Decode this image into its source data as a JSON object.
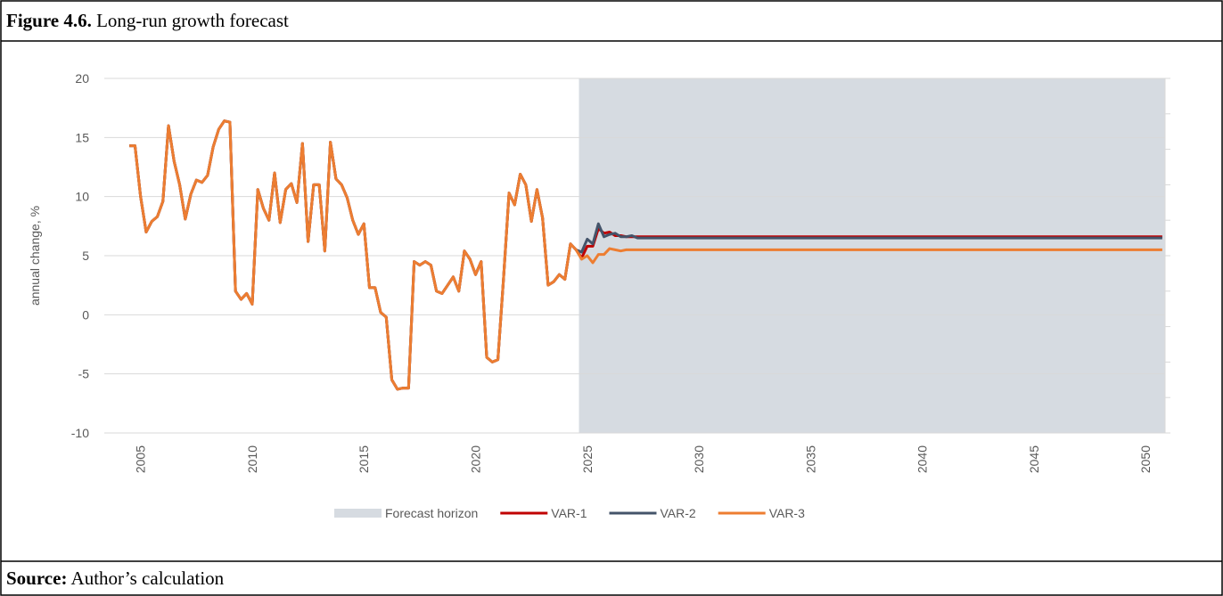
{
  "figure": {
    "label": "Figure 4.6.",
    "title": "Long-run growth forecast"
  },
  "source": {
    "label": "Source:",
    "text": "Author’s calculation"
  },
  "chart_data": {
    "type": "line",
    "y_label": "annual change, %",
    "ylim": [
      -10,
      20
    ],
    "yticks": [
      -10,
      -5,
      0,
      5,
      10,
      15,
      20
    ],
    "y2lim": [
      0,
      1
    ],
    "y2ticks": [
      0,
      0.1,
      0.2,
      0.3,
      0.4,
      0.5,
      0.6,
      0.7,
      0.8,
      0.9,
      1
    ],
    "grid": true,
    "legend": "bottom",
    "categories": [
      null,
      null,
      null,
      null,
      null,
      null,
      "2005",
      null,
      null,
      null,
      null,
      null,
      null,
      null,
      null,
      null,
      null,
      null,
      null,
      null,
      null,
      null,
      null,
      null,
      null,
      null,
      "2010",
      null,
      null,
      null,
      null,
      null,
      null,
      null,
      null,
      null,
      null,
      null,
      null,
      null,
      null,
      null,
      null,
      null,
      null,
      null,
      "2015",
      null,
      null,
      null,
      null,
      null,
      null,
      null,
      null,
      null,
      null,
      null,
      null,
      null,
      null,
      null,
      null,
      null,
      null,
      null,
      "2020",
      null,
      null,
      null,
      null,
      null,
      null,
      null,
      null,
      null,
      null,
      null,
      null,
      null,
      null,
      null,
      null,
      null,
      null,
      null,
      "2025",
      null,
      null,
      null,
      null,
      null,
      null,
      null,
      null,
      null,
      null,
      null,
      null,
      null,
      null,
      null,
      null,
      null,
      null,
      null,
      "2030",
      null,
      null,
      null,
      null,
      null,
      null,
      null,
      null,
      null,
      null,
      null,
      null,
      null,
      null,
      null,
      null,
      null,
      null,
      null,
      "2035",
      null,
      null,
      null,
      null,
      null,
      null,
      null,
      null,
      null,
      null,
      null,
      null,
      null,
      null,
      null,
      null,
      null,
      null,
      null,
      "2040",
      null,
      null,
      null,
      null,
      null,
      null,
      null,
      null,
      null,
      null,
      null,
      null,
      null,
      null,
      null,
      null,
      null,
      null,
      null,
      "2045",
      null,
      null,
      null,
      null,
      null,
      null,
      null,
      null,
      null,
      null,
      null,
      null,
      null,
      null,
      null,
      null,
      null,
      null,
      null,
      "2050",
      null,
      null,
      null
    ],
    "series": [
      {
        "name": "Forecast horizon",
        "type": "bar",
        "axis": "y2",
        "color": "#d6dbe1",
        "values": [
          null,
          null,
          null,
          null,
          null,
          null,
          null,
          null,
          null,
          null,
          null,
          null,
          null,
          null,
          null,
          null,
          null,
          null,
          null,
          null,
          null,
          null,
          null,
          null,
          null,
          null,
          null,
          null,
          null,
          null,
          null,
          null,
          null,
          null,
          null,
          null,
          null,
          null,
          null,
          null,
          null,
          null,
          null,
          null,
          null,
          null,
          null,
          null,
          null,
          null,
          null,
          null,
          null,
          null,
          null,
          null,
          null,
          null,
          null,
          null,
          null,
          null,
          null,
          null,
          null,
          null,
          null,
          null,
          null,
          null,
          null,
          null,
          null,
          null,
          null,
          null,
          null,
          null,
          null,
          null,
          null,
          null,
          null,
          null,
          null,
          1,
          1,
          1,
          1,
          1,
          1,
          1,
          1,
          1,
          1,
          1,
          1,
          1,
          1,
          1,
          1,
          1,
          1,
          1,
          1,
          1,
          1,
          1,
          1,
          1,
          1,
          1,
          1,
          1,
          1,
          1,
          1,
          1,
          1,
          1,
          1,
          1,
          1,
          1,
          1,
          1,
          1,
          1,
          1,
          1,
          1,
          1,
          1,
          1,
          1,
          1,
          1,
          1,
          1,
          1,
          1,
          1,
          1,
          1,
          1,
          1,
          1,
          1,
          1,
          1,
          1,
          1,
          1,
          1,
          1,
          1,
          1,
          1,
          1,
          1,
          1,
          1,
          1,
          1,
          1,
          1,
          1,
          1,
          1,
          1,
          1,
          1,
          1,
          1,
          1,
          1,
          1,
          1,
          1,
          1,
          1,
          1,
          1,
          1,
          1,
          1,
          1,
          1,
          1,
          1
        ]
      },
      {
        "name": "VAR-1",
        "type": "line",
        "color": "#c00000",
        "values": [
          null,
          null,
          null,
          null,
          14.3,
          14.3,
          10,
          7,
          7.9,
          8.3,
          9.6,
          16,
          13,
          11,
          8.1,
          10.2,
          11.4,
          11.2,
          11.8,
          14.2,
          15.7,
          16.4,
          16.3,
          2,
          1.3,
          1.8,
          0.9,
          10.6,
          9,
          8,
          12,
          7.8,
          10.6,
          11.1,
          9.5,
          14.5,
          6.2,
          11,
          11,
          5.4,
          14.6,
          11.5,
          11,
          9.9,
          8,
          6.8,
          7.7,
          2.3,
          2.3,
          0.2,
          -0.2,
          -5.5,
          -6.3,
          -6.2,
          -6.2,
          4.5,
          4.2,
          4.5,
          4.2,
          2,
          1.8,
          2.5,
          3.2,
          2,
          5.4,
          4.7,
          3.4,
          4.5,
          -3.6,
          -4,
          -3.8,
          3,
          10.3,
          9.3,
          11.9,
          11,
          7.9,
          10.6,
          8.2,
          2.5,
          2.8,
          3.4,
          3,
          6,
          5.5,
          4.8,
          5.8,
          5.8,
          7.3,
          6.9,
          7,
          6.7,
          6.7,
          6.6,
          6.6,
          6.6,
          6.6,
          6.6,
          6.6,
          6.6,
          6.6,
          6.6,
          6.6,
          6.6,
          6.6,
          6.6,
          6.6,
          6.6,
          6.6,
          6.6,
          6.6,
          6.6,
          6.6,
          6.6,
          6.6,
          6.6,
          6.6,
          6.6,
          6.6,
          6.6,
          6.6,
          6.6,
          6.6,
          6.6,
          6.6,
          6.6,
          6.6,
          6.6,
          6.6,
          6.6,
          6.6,
          6.6,
          6.6,
          6.6,
          6.6,
          6.6,
          6.6,
          6.6,
          6.6,
          6.6,
          6.6,
          6.6,
          6.6,
          6.6,
          6.6,
          6.6,
          6.6,
          6.6,
          6.6,
          6.6,
          6.6,
          6.6,
          6.6,
          6.6,
          6.6,
          6.6,
          6.6,
          6.6,
          6.6,
          6.6,
          6.6,
          6.6,
          6.6,
          6.6,
          6.6,
          6.6,
          6.6,
          6.6,
          6.6,
          6.6,
          6.6,
          6.6,
          6.6,
          6.6,
          6.6,
          6.6,
          6.6,
          6.6,
          6.6,
          6.6,
          6.6,
          6.6,
          6.6,
          6.6,
          6.6,
          6.6,
          6.6,
          6.6,
          6.6,
          6.6
        ]
      },
      {
        "name": "VAR-2",
        "type": "line",
        "color": "#44546a",
        "values": [
          null,
          null,
          null,
          null,
          14.3,
          14.3,
          10,
          7,
          7.9,
          8.3,
          9.6,
          16,
          13,
          11,
          8.1,
          10.2,
          11.4,
          11.2,
          11.8,
          14.2,
          15.7,
          16.4,
          16.3,
          2,
          1.3,
          1.8,
          0.9,
          10.6,
          9,
          8,
          12,
          7.8,
          10.6,
          11.1,
          9.5,
          14.5,
          6.2,
          11,
          11,
          5.4,
          14.6,
          11.5,
          11,
          9.9,
          8,
          6.8,
          7.7,
          2.3,
          2.3,
          0.2,
          -0.2,
          -5.5,
          -6.3,
          -6.2,
          -6.2,
          4.5,
          4.2,
          4.5,
          4.2,
          2,
          1.8,
          2.5,
          3.2,
          2,
          5.4,
          4.7,
          3.4,
          4.5,
          -3.6,
          -4,
          -3.8,
          3,
          10.3,
          9.3,
          11.9,
          11,
          7.9,
          10.6,
          8.2,
          2.5,
          2.8,
          3.4,
          3,
          6,
          5.5,
          5.3,
          6.4,
          6,
          7.7,
          6.6,
          6.8,
          6.9,
          6.6,
          6.6,
          6.7,
          6.5,
          6.5,
          6.5,
          6.5,
          6.5,
          6.5,
          6.5,
          6.5,
          6.5,
          6.5,
          6.5,
          6.5,
          6.5,
          6.5,
          6.5,
          6.5,
          6.5,
          6.5,
          6.5,
          6.5,
          6.5,
          6.5,
          6.5,
          6.5,
          6.5,
          6.5,
          6.5,
          6.5,
          6.5,
          6.5,
          6.5,
          6.5,
          6.5,
          6.5,
          6.5,
          6.5,
          6.5,
          6.5,
          6.5,
          6.5,
          6.5,
          6.5,
          6.5,
          6.5,
          6.5,
          6.5,
          6.5,
          6.5,
          6.5,
          6.5,
          6.5,
          6.5,
          6.5,
          6.5,
          6.5,
          6.5,
          6.5,
          6.5,
          6.5,
          6.5,
          6.5,
          6.5,
          6.5,
          6.5,
          6.5,
          6.5,
          6.5,
          6.5,
          6.5,
          6.5,
          6.5,
          6.5,
          6.5,
          6.5,
          6.5,
          6.5,
          6.5,
          6.5,
          6.5,
          6.5,
          6.5,
          6.5,
          6.5,
          6.5,
          6.5,
          6.5,
          6.5,
          6.5,
          6.5,
          6.5,
          6.5,
          6.5,
          6.5,
          6.5,
          6.5
        ]
      },
      {
        "name": "VAR-3",
        "type": "line",
        "color": "#ed7d31",
        "values": [
          null,
          null,
          null,
          null,
          14.3,
          14.3,
          10,
          7,
          7.9,
          8.3,
          9.6,
          16,
          13,
          11,
          8.1,
          10.2,
          11.4,
          11.2,
          11.8,
          14.2,
          15.7,
          16.4,
          16.3,
          2,
          1.3,
          1.8,
          0.9,
          10.6,
          9,
          8,
          12,
          7.8,
          10.6,
          11.1,
          9.5,
          14.5,
          6.2,
          11,
          11,
          5.4,
          14.6,
          11.5,
          11,
          9.9,
          8,
          6.8,
          7.7,
          2.3,
          2.3,
          0.2,
          -0.2,
          -5.5,
          -6.3,
          -6.2,
          -6.2,
          4.5,
          4.2,
          4.5,
          4.2,
          2,
          1.8,
          2.5,
          3.2,
          2,
          5.4,
          4.7,
          3.4,
          4.5,
          -3.6,
          -4,
          -3.8,
          3,
          10.3,
          9.3,
          11.9,
          11,
          7.9,
          10.6,
          8.2,
          2.5,
          2.8,
          3.4,
          3,
          6,
          5.5,
          4.7,
          5,
          4.4,
          5.1,
          5.1,
          5.6,
          5.5,
          5.4,
          5.5,
          5.5,
          5.5,
          5.5,
          5.5,
          5.5,
          5.5,
          5.5,
          5.5,
          5.5,
          5.5,
          5.5,
          5.5,
          5.5,
          5.5,
          5.5,
          5.5,
          5.5,
          5.5,
          5.5,
          5.5,
          5.5,
          5.5,
          5.5,
          5.5,
          5.5,
          5.5,
          5.5,
          5.5,
          5.5,
          5.5,
          5.5,
          5.5,
          5.5,
          5.5,
          5.5,
          5.5,
          5.5,
          5.5,
          5.5,
          5.5,
          5.5,
          5.5,
          5.5,
          5.5,
          5.5,
          5.5,
          5.5,
          5.5,
          5.5,
          5.5,
          5.5,
          5.5,
          5.5,
          5.5,
          5.5,
          5.5,
          5.5,
          5.5,
          5.5,
          5.5,
          5.5,
          5.5,
          5.5,
          5.5,
          5.5,
          5.5,
          5.5,
          5.5,
          5.5,
          5.5,
          5.5,
          5.5,
          5.5,
          5.5,
          5.5,
          5.5,
          5.5,
          5.5,
          5.5,
          5.5,
          5.5,
          5.5,
          5.5,
          5.5,
          5.5,
          5.5,
          5.5,
          5.5,
          5.5,
          5.5,
          5.5,
          5.5,
          5.5,
          5.5,
          5.5,
          5.5
        ]
      }
    ]
  }
}
